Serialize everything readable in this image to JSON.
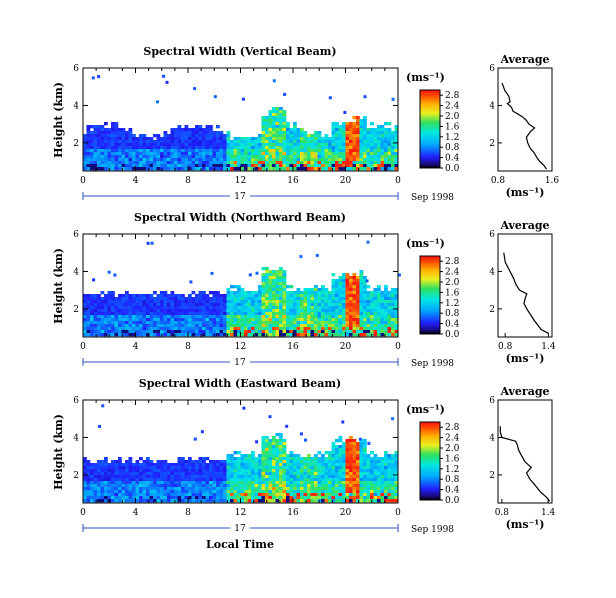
{
  "chart_data": [
    {
      "type": "heatmap",
      "title": "Spectral Width (Vertical Beam)",
      "ylabel": "Height (km)",
      "y_ticks": [
        "2",
        "4",
        "6"
      ],
      "x_ticks": [
        "0",
        "4",
        "8",
        "12",
        "16",
        "20",
        "0"
      ],
      "xlim": [
        0,
        24
      ],
      "ylim": [
        0.5,
        6
      ],
      "day_label": "17",
      "date_label": "Sep 1998",
      "colorbar": {
        "unit": "(ms⁻¹)",
        "labels": [
          "0.0",
          "0.4",
          "0.8",
          "1.2",
          "1.6",
          "2.0",
          "2.4",
          "2.8"
        ],
        "range": [
          0,
          3.0
        ]
      },
      "average": {
        "title": "Average",
        "xlabel": "(ms⁻¹)",
        "x_ticks": [
          "0.8",
          "1.6"
        ],
        "xlim": [
          0.8,
          1.6
        ],
        "y_ticks": [
          "2",
          "4",
          "6"
        ],
        "ylim": [
          0.5,
          6
        ],
        "profile": [
          [
            1.52,
            0.6
          ],
          [
            1.48,
            0.8
          ],
          [
            1.42,
            1.0
          ],
          [
            1.38,
            1.2
          ],
          [
            1.33,
            1.5
          ],
          [
            1.28,
            1.7
          ],
          [
            1.24,
            2.0
          ],
          [
            1.22,
            2.3
          ],
          [
            1.28,
            2.6
          ],
          [
            1.34,
            2.8
          ],
          [
            1.26,
            3.0
          ],
          [
            1.22,
            3.2
          ],
          [
            1.16,
            3.4
          ],
          [
            1.02,
            3.7
          ],
          [
            1.0,
            3.9
          ],
          [
            0.94,
            4.1
          ],
          [
            0.98,
            4.2
          ],
          [
            0.96,
            4.5
          ],
          [
            0.9,
            4.8
          ],
          [
            0.86,
            5.2
          ]
        ]
      }
    },
    {
      "type": "heatmap",
      "title": "Spectral Width (Northward Beam)",
      "ylabel": "Height (km)",
      "y_ticks": [
        "2",
        "4",
        "6"
      ],
      "x_ticks": [
        "0",
        "4",
        "8",
        "12",
        "16",
        "20",
        "0"
      ],
      "xlim": [
        0,
        24
      ],
      "ylim": [
        0.5,
        6
      ],
      "day_label": "17",
      "date_label": "Sep 1998",
      "colorbar": {
        "unit": "(ms⁻¹)",
        "labels": [
          "0.0",
          "0.4",
          "0.8",
          "1.2",
          "1.6",
          "2.0",
          "2.4",
          "2.8"
        ],
        "range": [
          0,
          3.0
        ]
      },
      "average": {
        "title": "Average",
        "xlabel": "(ms⁻¹)",
        "x_ticks": [
          "0.8",
          "1.4"
        ],
        "xlim": [
          0.7,
          1.45
        ],
        "y_ticks": [
          "2",
          "4",
          "6"
        ],
        "ylim": [
          0.5,
          6
        ],
        "profile": [
          [
            1.4,
            0.7
          ],
          [
            1.3,
            0.9
          ],
          [
            1.26,
            1.1
          ],
          [
            1.2,
            1.4
          ],
          [
            1.15,
            1.7
          ],
          [
            1.1,
            2.0
          ],
          [
            1.06,
            2.3
          ],
          [
            1.08,
            2.6
          ],
          [
            1.1,
            2.8
          ],
          [
            1.0,
            3.0
          ],
          [
            0.95,
            3.3
          ],
          [
            0.92,
            3.6
          ],
          [
            0.88,
            3.9
          ],
          [
            0.84,
            4.2
          ],
          [
            0.8,
            4.5
          ],
          [
            0.78,
            5.0
          ]
        ]
      }
    },
    {
      "type": "heatmap",
      "title": "Spectral Width (Eastward Beam)",
      "ylabel": "Height (km)",
      "y_ticks": [
        "2",
        "4",
        "6"
      ],
      "x_ticks": [
        "0",
        "4",
        "8",
        "12",
        "16",
        "20",
        "0"
      ],
      "xlim": [
        0,
        24
      ],
      "ylim": [
        0.5,
        6
      ],
      "day_label": "17",
      "date_label": "Sep 1998",
      "xlabel": "Local Time",
      "colorbar": {
        "unit": "(ms⁻¹)",
        "labels": [
          "0.0",
          "0.4",
          "0.8",
          "1.2",
          "1.6",
          "2.0",
          "2.4",
          "2.8"
        ],
        "range": [
          0,
          3.0
        ]
      },
      "average": {
        "title": "Average",
        "xlabel": "(ms⁻¹)",
        "x_ticks": [
          "0.8",
          "1.4"
        ],
        "xlim": [
          0.75,
          1.45
        ],
        "y_ticks": [
          "2",
          "4",
          "6"
        ],
        "ylim": [
          0.5,
          6
        ],
        "profile": [
          [
            1.42,
            0.6
          ],
          [
            1.38,
            0.8
          ],
          [
            1.3,
            1.1
          ],
          [
            1.22,
            1.5
          ],
          [
            1.16,
            1.8
          ],
          [
            1.12,
            2.1
          ],
          [
            1.18,
            2.4
          ],
          [
            1.1,
            2.7
          ],
          [
            1.06,
            3.0
          ],
          [
            1.02,
            3.3
          ],
          [
            1.0,
            3.6
          ],
          [
            0.98,
            3.8
          ],
          [
            0.8,
            4.0
          ],
          [
            0.78,
            4.3
          ],
          [
            0.78,
            4.6
          ]
        ]
      }
    }
  ]
}
